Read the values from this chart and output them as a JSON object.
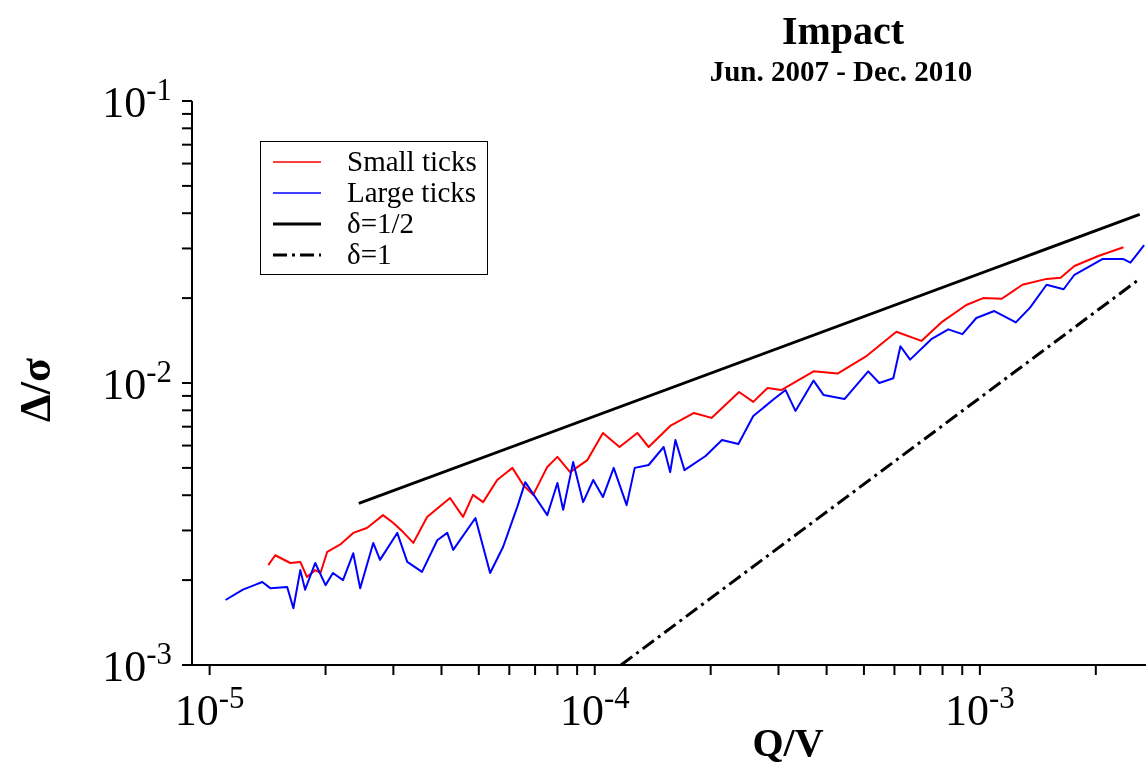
{
  "chart_data": {
    "type": "line",
    "title": "Impact",
    "subtitle": "Jun. 2007 - Dec. 2010",
    "xlabel": "Q/V",
    "ylabel": "Δ/σ",
    "log": "xy",
    "legend": "top left",
    "marker": "none",
    "xlim": [
      9e-06,
      0.0027
    ],
    "ylim": [
      0.001,
      0.1
    ],
    "xticks": [
      {
        "value": 1e-05,
        "label": "10$^{-5}$"
      },
      {
        "value": 2e-05,
        "label": null
      },
      {
        "value": 3e-05,
        "label": null
      },
      {
        "value": 4e-05,
        "label": null
      },
      {
        "value": 5e-05,
        "label": null
      },
      {
        "value": 6e-05,
        "label": null
      },
      {
        "value": 7e-05,
        "label": null
      },
      {
        "value": 8e-05,
        "label": null
      },
      {
        "value": 9e-05,
        "label": null
      },
      {
        "value": 0.0001,
        "label": "10$^{-4}$"
      },
      {
        "value": 0.0002,
        "label": null
      },
      {
        "value": 0.0003,
        "label": null
      },
      {
        "value": 0.0004,
        "label": null
      },
      {
        "value": 0.0005,
        "label": null
      },
      {
        "value": 0.0006,
        "label": null
      },
      {
        "value": 0.0007,
        "label": null
      },
      {
        "value": 0.0008,
        "label": null
      },
      {
        "value": 0.0009,
        "label": null
      },
      {
        "value": 0.001,
        "label": "10$^{-3}$"
      },
      {
        "value": 0.002,
        "label": null
      }
    ],
    "yticks": [
      {
        "value": 0.001,
        "label": "10$^{-3}$"
      },
      {
        "value": 0.002,
        "label": null
      },
      {
        "value": 0.003,
        "label": null
      },
      {
        "value": 0.004,
        "label": null
      },
      {
        "value": 0.005,
        "label": null
      },
      {
        "value": 0.006,
        "label": null
      },
      {
        "value": 0.007,
        "label": null
      },
      {
        "value": 0.008,
        "label": null
      },
      {
        "value": 0.009,
        "label": null
      },
      {
        "value": 0.01,
        "label": "10$^{-2}$"
      },
      {
        "value": 0.02,
        "label": null
      },
      {
        "value": 0.03,
        "label": null
      },
      {
        "value": 0.04,
        "label": null
      },
      {
        "value": 0.05,
        "label": null
      },
      {
        "value": 0.06,
        "label": null
      },
      {
        "value": 0.07,
        "label": null
      },
      {
        "value": 0.08,
        "label": null
      },
      {
        "value": 0.09,
        "label": null
      },
      {
        "value": 0.1,
        "label": "10$^{-1}$"
      }
    ],
    "series": [
      {
        "name": "Small ticks",
        "color": "#ff0000",
        "line_style": "solid",
        "x": [
          1.42e-05,
          1.48e-05,
          1.62e-05,
          1.72e-05,
          1.79e-05,
          1.88e-05,
          1.94e-05,
          2.02e-05,
          2.18e-05,
          2.36e-05,
          2.56e-05,
          2.66e-05,
          2.82e-05,
          3e-05,
          3.18e-05,
          3.38e-05,
          3.67e-05,
          4.21e-05,
          4.55e-05,
          4.83e-05,
          5.13e-05,
          5.58e-05,
          6.11e-05,
          6.52e-05,
          6.92e-05,
          7.53e-05,
          8e-05,
          8.63e-05,
          9.57e-05,
          0.000105,
          0.000116,
          0.000129,
          0.000138,
          0.000157,
          0.000181,
          0.000201,
          0.000237,
          0.000258,
          0.000281,
          0.000305,
          0.00037,
          0.000427,
          0.000505,
          0.000607,
          0.000705,
          0.000794,
          0.000922,
          0.00102,
          0.00114,
          0.00129,
          0.00149,
          0.00162,
          0.00176,
          0.00203,
          0.00236
        ],
        "values": [
          0.00226,
          0.00245,
          0.0023,
          0.00232,
          0.00205,
          0.00217,
          0.00212,
          0.00252,
          0.00267,
          0.00294,
          0.00306,
          0.00319,
          0.0034,
          0.00319,
          0.00296,
          0.00271,
          0.00335,
          0.00391,
          0.00335,
          0.00401,
          0.00378,
          0.00453,
          0.005,
          0.00435,
          0.00401,
          0.00504,
          0.00547,
          0.00483,
          0.00533,
          0.00665,
          0.00593,
          0.00665,
          0.00593,
          0.00704,
          0.00783,
          0.00752,
          0.00929,
          0.00857,
          0.0096,
          0.00944,
          0.011,
          0.0108,
          0.0124,
          0.0152,
          0.0141,
          0.0164,
          0.0189,
          0.02,
          0.0199,
          0.0223,
          0.0234,
          0.0236,
          0.026,
          0.0282,
          0.0303
        ]
      },
      {
        "name": "Large ticks",
        "color": "#0000ff",
        "line_style": "solid",
        "x": [
          1.1e-05,
          1.22e-05,
          1.37e-05,
          1.44e-05,
          1.59e-05,
          1.65e-05,
          1.72e-05,
          1.77e-05,
          1.88e-05,
          2e-05,
          2.09e-05,
          2.22e-05,
          2.36e-05,
          2.46e-05,
          2.66e-05,
          2.77e-05,
          3.07e-05,
          3.26e-05,
          3.56e-05,
          3.9e-05,
          4.14e-05,
          4.29e-05,
          4.9e-05,
          5.35e-05,
          5.78e-05,
          6.29e-05,
          6.6e-05,
          7.53e-05,
          8e-05,
          8.28e-05,
          8.79e-05,
          9.33e-05,
          9.91e-05,
          0.000105,
          0.000112,
          0.000121,
          0.000127,
          0.000138,
          0.000151,
          0.000157,
          0.000162,
          0.000171,
          0.000194,
          0.000214,
          0.000236,
          0.000258,
          0.000292,
          0.000313,
          0.000332,
          0.00037,
          0.000393,
          0.000445,
          0.000513,
          0.000548,
          0.000596,
          0.000622,
          0.000659,
          0.000748,
          0.000828,
          0.000901,
          0.000979,
          0.00109,
          0.00124,
          0.00135,
          0.00149,
          0.00165,
          0.00176,
          0.00208,
          0.00236,
          0.00246,
          0.00267
        ],
        "values": [
          0.0017,
          0.00185,
          0.00197,
          0.00187,
          0.00189,
          0.00159,
          0.00217,
          0.00185,
          0.0023,
          0.00192,
          0.00212,
          0.002,
          0.00249,
          0.00187,
          0.00271,
          0.00236,
          0.00294,
          0.00232,
          0.00214,
          0.00277,
          0.00294,
          0.00256,
          0.00332,
          0.00212,
          0.00262,
          0.00363,
          0.00445,
          0.0034,
          0.00442,
          0.00355,
          0.00525,
          0.00378,
          0.00453,
          0.00394,
          0.005,
          0.00369,
          0.005,
          0.00512,
          0.00593,
          0.00483,
          0.00628,
          0.00491,
          0.00551,
          0.00628,
          0.00608,
          0.00764,
          0.00877,
          0.00944,
          0.00796,
          0.0102,
          0.00906,
          0.00877,
          0.011,
          0.01,
          0.0104,
          0.0135,
          0.0121,
          0.0143,
          0.0155,
          0.0149,
          0.017,
          0.018,
          0.0164,
          0.0185,
          0.0223,
          0.0215,
          0.0242,
          0.0275,
          0.0275,
          0.0267,
          0.0308
        ]
      },
      {
        "name": "δ=1/2",
        "color": "#000000",
        "line_style": "solid",
        "x": [
          2.44e-05,
          0.0026
        ],
        "values": [
          0.00374,
          0.0396
        ]
      },
      {
        "name": "δ=1",
        "color": "#000000",
        "line_style": "dashdot",
        "x": [
          0.000117,
          0.0026
        ],
        "values": [
          0.001,
          0.0234
        ]
      }
    ]
  }
}
